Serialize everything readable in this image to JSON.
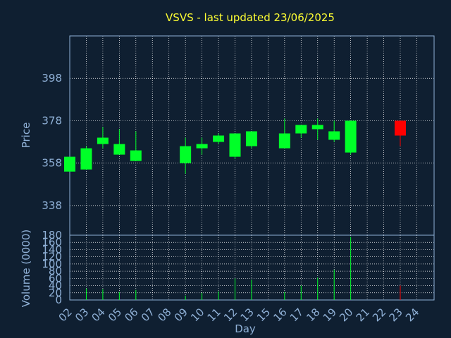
{
  "chart_data": {
    "type": "candlestick",
    "title": "VSVS - last updated 23/06/2025",
    "xlabel": "Day",
    "ylabel": "Price",
    "volume_label": "Volume (0000)",
    "grid": true,
    "colors": {
      "background": "#0f1f31",
      "up": "#00ff28",
      "down": "#ff0000",
      "grid": "#ffffff",
      "axis": "#8fb0d6",
      "title": "#ffff33"
    },
    "x_ticks": [
      "02",
      "03",
      "04",
      "05",
      "06",
      "07",
      "08",
      "09",
      "10",
      "11",
      "12",
      "13",
      "15",
      "16",
      "17",
      "18",
      "19",
      "20",
      "21",
      "22",
      "23",
      "24"
    ],
    "price_ticks": [
      338,
      358,
      378,
      398
    ],
    "price_range": [
      324,
      418
    ],
    "volume_ticks": [
      0,
      20,
      40,
      60,
      80,
      100,
      120,
      140,
      160,
      180
    ],
    "volume_range": [
      0,
      180
    ],
    "candles": [
      {
        "day": "02",
        "open": 354,
        "close": 361,
        "high": 361,
        "low": 354,
        "volume": 0
      },
      {
        "day": "03",
        "open": 355,
        "close": 365,
        "high": 366,
        "low": 355,
        "volume": 32
      },
      {
        "day": "04",
        "open": 367,
        "close": 370,
        "high": 375,
        "low": 365,
        "volume": 30
      },
      {
        "day": "05",
        "open": 362,
        "close": 367,
        "high": 374,
        "low": 362,
        "volume": 22
      },
      {
        "day": "06",
        "open": 359,
        "close": 364,
        "high": 373,
        "low": 359,
        "volume": 28
      },
      {
        "day": "09",
        "open": 358,
        "close": 366,
        "high": 370,
        "low": 353,
        "volume": 12
      },
      {
        "day": "10",
        "open": 365,
        "close": 367,
        "high": 370,
        "low": 362,
        "volume": 20
      },
      {
        "day": "11",
        "open": 368,
        "close": 371,
        "high": 372,
        "low": 367,
        "volume": 24
      },
      {
        "day": "12",
        "open": 361,
        "close": 372,
        "high": 372,
        "low": 360,
        "volume": 60
      },
      {
        "day": "13",
        "open": 366,
        "close": 373,
        "high": 373,
        "low": 365,
        "volume": 56
      },
      {
        "day": "16",
        "open": 365,
        "close": 372,
        "high": 379,
        "low": 365,
        "volume": 22
      },
      {
        "day": "17",
        "open": 372,
        "close": 376,
        "high": 376,
        "low": 370,
        "volume": 40
      },
      {
        "day": "18",
        "open": 374,
        "close": 376,
        "high": 379,
        "low": 369,
        "volume": 62
      },
      {
        "day": "19",
        "open": 369,
        "close": 373,
        "high": 378,
        "low": 368,
        "volume": 84
      },
      {
        "day": "20",
        "open": 363,
        "close": 378,
        "high": 378,
        "low": 362,
        "volume": 175
      },
      {
        "day": "23",
        "open": 378,
        "close": 371,
        "high": 378,
        "low": 366,
        "volume": 40
      }
    ]
  }
}
